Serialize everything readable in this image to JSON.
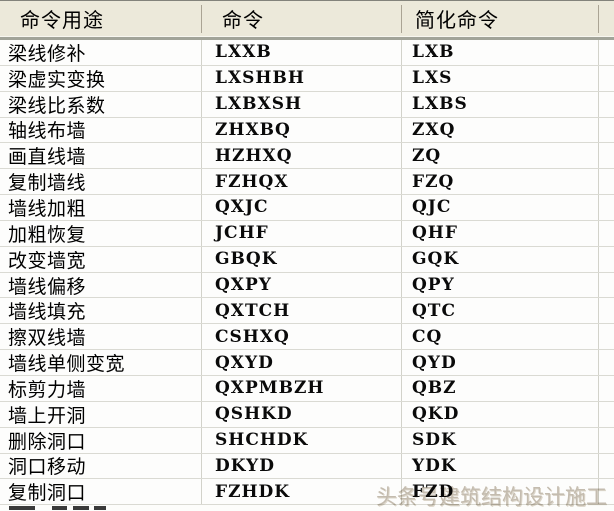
{
  "table": {
    "columns": [
      {
        "label": "命令用途"
      },
      {
        "label": "命令"
      },
      {
        "label": "简化命令"
      }
    ],
    "rows": [
      {
        "purpose": "梁线修补",
        "command": "LXXB",
        "short": "LXB"
      },
      {
        "purpose": "梁虚实变换",
        "command": "LXSHBH",
        "short": "LXS"
      },
      {
        "purpose": "梁线比系数",
        "command": "LXBXSH",
        "short": "LXBS"
      },
      {
        "purpose": "轴线布墙",
        "command": "ZHXBQ",
        "short": "ZXQ"
      },
      {
        "purpose": "画直线墙",
        "command": "HZHXQ",
        "short": "ZQ"
      },
      {
        "purpose": "复制墙线",
        "command": "FZHQX",
        "short": "FZQ"
      },
      {
        "purpose": "墙线加粗",
        "command": "QXJC",
        "short": "QJC"
      },
      {
        "purpose": "加粗恢复",
        "command": "JCHF",
        "short": "QHF"
      },
      {
        "purpose": "改变墙宽",
        "command": "GBQK",
        "short": "GQK"
      },
      {
        "purpose": "墙线偏移",
        "command": "QXPY",
        "short": "QPY"
      },
      {
        "purpose": "墙线填充",
        "command": "QXTCH",
        "short": "QTC"
      },
      {
        "purpose": "擦双线墙",
        "command": "CSHXQ",
        "short": "CQ"
      },
      {
        "purpose": "墙线单侧变宽",
        "command": "QXYD",
        "short": "QYD"
      },
      {
        "purpose": "标剪力墙",
        "command": "QXPMBZH",
        "short": "QBZ"
      },
      {
        "purpose": "墙上开洞",
        "command": "QSHKD",
        "short": "QKD"
      },
      {
        "purpose": "删除洞口",
        "command": "SHCHDK",
        "short": "SDK"
      },
      {
        "purpose": "洞口移动",
        "command": "DKYD",
        "short": "YDK"
      },
      {
        "purpose": "复制洞口",
        "command": "FZHDK",
        "short": "FZD"
      }
    ],
    "clipped_partial_row": true
  },
  "watermark": {
    "text": "头条号建筑结构设计施工"
  },
  "colors": {
    "header_bg": "#ece9da",
    "header_edge_dark": "#a2a499",
    "grid_line": "#d2d2ca",
    "row_separator": "#dadad3",
    "row_bg": "#fdfdfc",
    "text": "#000000",
    "watermark": "#c6beb1"
  }
}
